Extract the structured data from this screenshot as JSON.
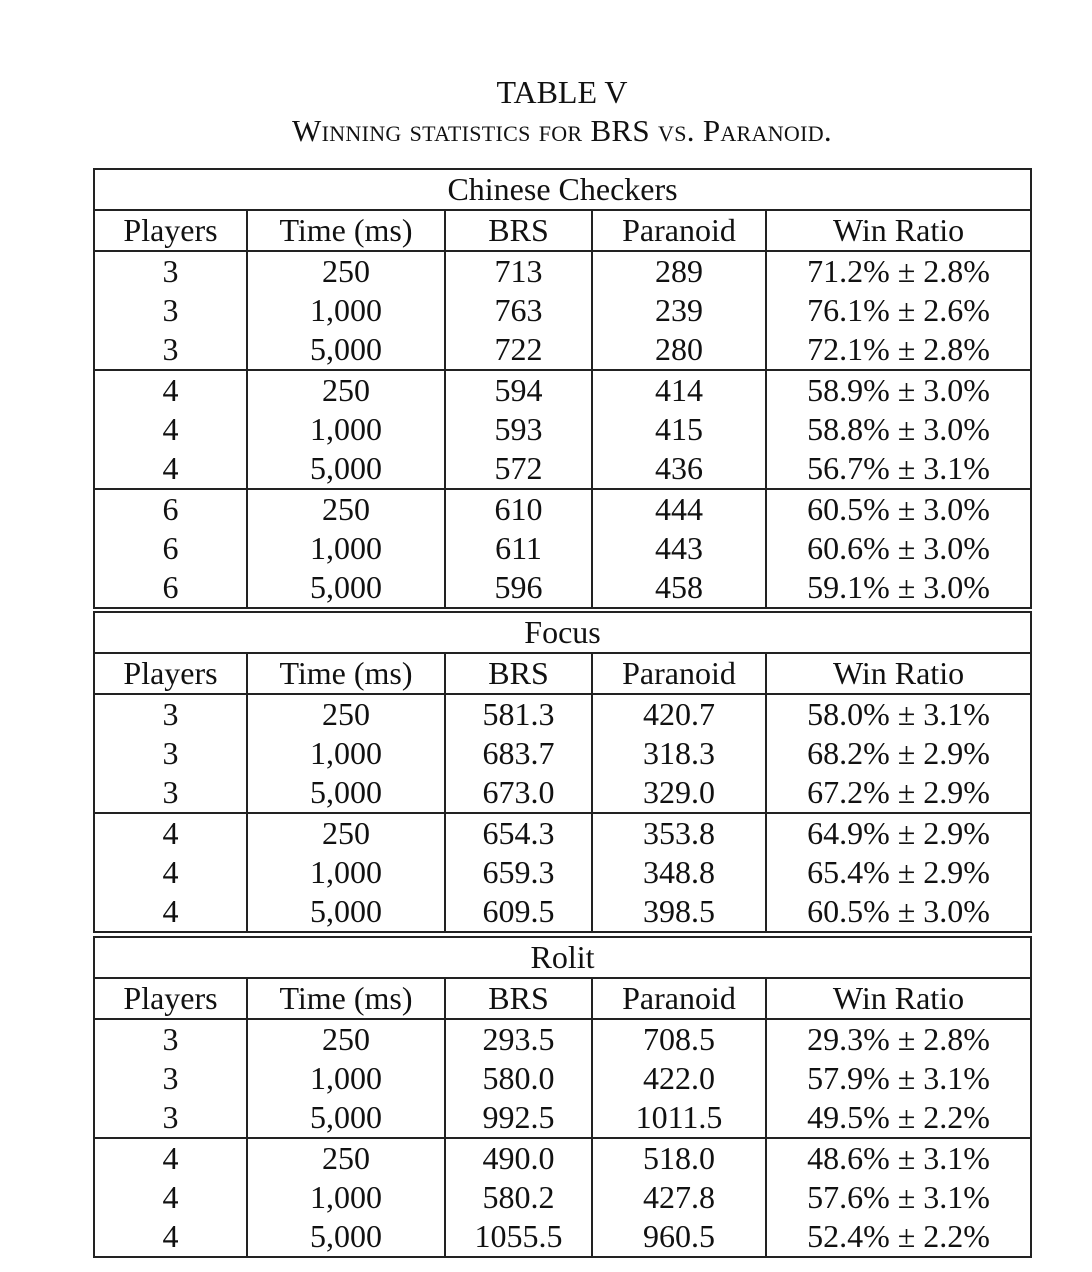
{
  "caption": {
    "label": "TABLE V",
    "text": "Winning statistics for BRS vs. Paranoid."
  },
  "columns": [
    "Players",
    "Time (ms)",
    "BRS",
    "Paranoid",
    "Win Ratio"
  ],
  "sections": [
    {
      "game": "Chinese Checkers",
      "groups": [
        [
          [
            "3",
            "250",
            "713",
            "289",
            "71.2% ± 2.8%"
          ],
          [
            "3",
            "1,000",
            "763",
            "239",
            "76.1% ± 2.6%"
          ],
          [
            "3",
            "5,000",
            "722",
            "280",
            "72.1% ± 2.8%"
          ]
        ],
        [
          [
            "4",
            "250",
            "594",
            "414",
            "58.9% ± 3.0%"
          ],
          [
            "4",
            "1,000",
            "593",
            "415",
            "58.8% ± 3.0%"
          ],
          [
            "4",
            "5,000",
            "572",
            "436",
            "56.7% ± 3.1%"
          ]
        ],
        [
          [
            "6",
            "250",
            "610",
            "444",
            "60.5% ± 3.0%"
          ],
          [
            "6",
            "1,000",
            "611",
            "443",
            "60.6% ± 3.0%"
          ],
          [
            "6",
            "5,000",
            "596",
            "458",
            "59.1% ± 3.0%"
          ]
        ]
      ]
    },
    {
      "game": "Focus",
      "groups": [
        [
          [
            "3",
            "250",
            "581.3",
            "420.7",
            "58.0% ± 3.1%"
          ],
          [
            "3",
            "1,000",
            "683.7",
            "318.3",
            "68.2% ± 2.9%"
          ],
          [
            "3",
            "5,000",
            "673.0",
            "329.0",
            "67.2% ± 2.9%"
          ]
        ],
        [
          [
            "4",
            "250",
            "654.3",
            "353.8",
            "64.9% ± 2.9%"
          ],
          [
            "4",
            "1,000",
            "659.3",
            "348.8",
            "65.4% ± 2.9%"
          ],
          [
            "4",
            "5,000",
            "609.5",
            "398.5",
            "60.5% ± 3.0%"
          ]
        ]
      ]
    },
    {
      "game": "Rolit",
      "groups": [
        [
          [
            "3",
            "250",
            "293.5",
            "708.5",
            "29.3% ± 2.8%"
          ],
          [
            "3",
            "1,000",
            "580.0",
            "422.0",
            "57.9% ± 3.1%"
          ],
          [
            "3",
            "5,000",
            "992.5",
            "1011.5",
            "49.5% ± 2.2%"
          ]
        ],
        [
          [
            "4",
            "250",
            "490.0",
            "518.0",
            "48.6% ± 3.1%"
          ],
          [
            "4",
            "1,000",
            "580.2",
            "427.8",
            "57.6% ± 3.1%"
          ],
          [
            "4",
            "5,000",
            "1055.5",
            "960.5",
            "52.4% ± 2.2%"
          ]
        ]
      ]
    }
  ]
}
